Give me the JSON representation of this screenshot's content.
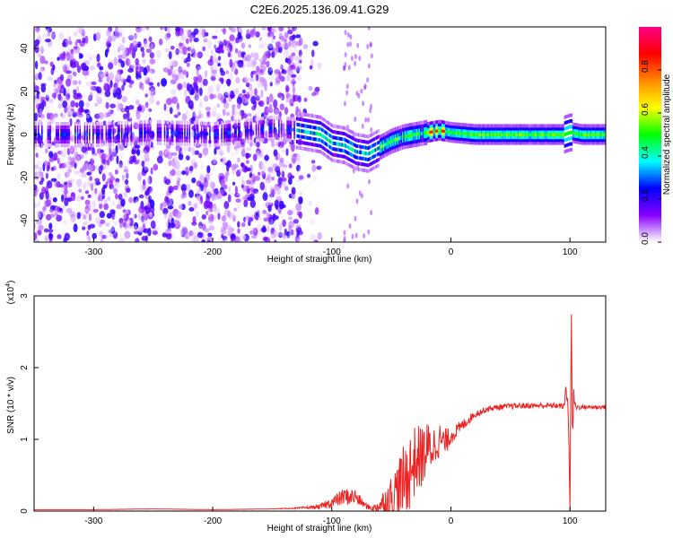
{
  "figure": {
    "title": "C2E6.2025.136.09.41.G29"
  },
  "chart_data": [
    {
      "type": "heatmap",
      "xlabel": "Height of straight line (km)",
      "ylabel": "Frequency (Hz)",
      "xlim": [
        -350,
        130
      ],
      "ylim": [
        -50,
        50
      ],
      "x_ticks": [
        -300,
        -200,
        -100,
        0,
        100
      ],
      "x_tick_labels": [
        "-300",
        "-200",
        "-100",
        "0",
        "100"
      ],
      "y_ticks": [
        -40,
        -20,
        0,
        20,
        40
      ],
      "y_tick_labels": [
        "-40",
        "-20",
        "0",
        "20",
        "40"
      ],
      "colorbar": {
        "label": "Normalized spectral amplitude",
        "range": [
          0,
          1
        ],
        "ticks": [
          0.0,
          0.2,
          0.4,
          0.6,
          0.8
        ],
        "tick_labels": [
          "0.0",
          "0.2",
          "0.4",
          "0.6",
          "0.8"
        ],
        "colormap": [
          "#ffffff",
          "#8800ff",
          "#0000ff",
          "#00ffff",
          "#00ff00",
          "#ffff00",
          "#ff8800",
          "#ff0000",
          "#ff0088"
        ]
      },
      "ridge_center_hz": [
        [
          -350,
          0
        ],
        [
          -300,
          0
        ],
        [
          -250,
          1
        ],
        [
          -200,
          0
        ],
        [
          -150,
          3
        ],
        [
          -130,
          2
        ],
        [
          -110,
          0
        ],
        [
          -100,
          -4
        ],
        [
          -90,
          -5
        ],
        [
          -80,
          -8
        ],
        [
          -70,
          -9
        ],
        [
          -60,
          -6
        ],
        [
          -50,
          -3
        ],
        [
          -40,
          -1
        ],
        [
          -30,
          0
        ],
        [
          -20,
          1
        ],
        [
          -10,
          2
        ],
        [
          0,
          1
        ],
        [
          20,
          0
        ],
        [
          60,
          0
        ],
        [
          95,
          0
        ],
        [
          100,
          1
        ],
        [
          110,
          0
        ],
        [
          130,
          0
        ]
      ],
      "grid": false
    },
    {
      "type": "line",
      "xlabel": "Height of straight line (km)",
      "ylabel": "SNR (10 * v/v)",
      "y_multiplier_label": "(x10",
      "y_multiplier_exp": "4",
      "y_multiplier_close": ")",
      "xlim": [
        -350,
        130
      ],
      "ylim": [
        0,
        3
      ],
      "x_ticks": [
        -300,
        -200,
        -100,
        0,
        100
      ],
      "x_tick_labels": [
        "-300",
        "-200",
        "-100",
        "0",
        "100"
      ],
      "y_ticks": [
        0,
        1,
        2,
        3
      ],
      "y_tick_labels": [
        "0",
        "1",
        "2",
        "3"
      ],
      "series": [
        {
          "color": "#ee2222",
          "x": [
            -350,
            -300,
            -250,
            -200,
            -150,
            -130,
            -110,
            -100,
            -90,
            -80,
            -75,
            -70,
            -65,
            -60,
            -50,
            -40,
            -35,
            -30,
            -25,
            -20,
            -15,
            -10,
            -5,
            0,
            5,
            10,
            20,
            30,
            40,
            50,
            60,
            70,
            80,
            90,
            95,
            98,
            100,
            101,
            102,
            103,
            104,
            105,
            110,
            120,
            130
          ],
          "y": [
            0.02,
            0.02,
            0.03,
            0.02,
            0.03,
            0.04,
            0.06,
            0.12,
            0.2,
            0.2,
            0.12,
            0.06,
            0.04,
            0.08,
            0.2,
            0.4,
            0.55,
            0.7,
            0.75,
            0.85,
            0.9,
            1.0,
            0.95,
            1.05,
            1.12,
            1.2,
            1.35,
            1.42,
            1.45,
            1.46,
            1.47,
            1.47,
            1.47,
            1.47,
            1.46,
            1.8,
            0.08,
            2.6,
            1.2,
            1.6,
            1.5,
            1.45,
            1.45,
            1.45,
            1.45
          ],
          "noise_band": [
            0.0,
            0.0,
            0.0,
            0.0,
            0.0,
            0.01,
            0.03,
            0.08,
            0.12,
            0.12,
            0.06,
            0.04,
            0.04,
            0.12,
            0.3,
            0.5,
            0.55,
            0.5,
            0.45,
            0.4,
            0.3,
            0.25,
            0.2,
            0.12,
            0.1,
            0.08,
            0.05,
            0.04,
            0.04,
            0.04,
            0.04,
            0.04,
            0.04,
            0.04,
            0.04,
            0.3,
            0.1,
            0.4,
            0.6,
            0.2,
            0.05,
            0.04,
            0.03,
            0.03,
            0.03
          ]
        }
      ],
      "grid": false
    }
  ]
}
